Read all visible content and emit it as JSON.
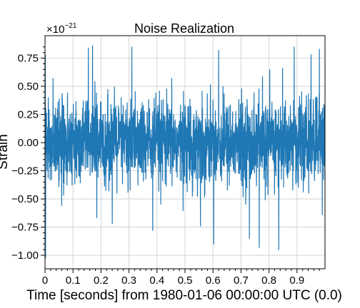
{
  "chart_data": {
    "type": "line",
    "title": "Noise Realization",
    "xlabel": "Time [seconds] from 1980-01-06 00:00:00 UTC (0.0)",
    "ylabel": "Strain",
    "y_exponent_label": "×10",
    "y_exponent_power": "−21",
    "xlim": [
      0,
      1.0
    ],
    "ylim": [
      -1.12,
      0.95
    ],
    "x_ticks": [
      0,
      0.1,
      0.2,
      0.3,
      0.4,
      0.5,
      0.6,
      0.7,
      0.8,
      0.9
    ],
    "x_tick_labels": [
      "0",
      "0.1",
      "0.2",
      "0.3",
      "0.4",
      "0.5",
      "0.6",
      "0.7",
      "0.8",
      "0.9"
    ],
    "y_ticks": [
      -1.0,
      -0.75,
      -0.5,
      -0.25,
      0.0,
      0.25,
      0.5,
      0.75
    ],
    "y_tick_labels": [
      "−1.00",
      "−0.75",
      "−0.50",
      "−0.25",
      "0.00",
      "0.25",
      "0.50",
      "0.75"
    ],
    "grid": true,
    "series": [
      {
        "color": "#1f77b4",
        "sample_rate": 2048,
        "duration": 1.0,
        "typical_envelope": [
          -0.4,
          0.4
        ],
        "extremes": [
          {
            "x": 0.002,
            "y": -1.02
          },
          {
            "x": 0.001,
            "y": 0.78
          },
          {
            "x": 0.155,
            "y": 0.84
          },
          {
            "x": 0.17,
            "y": 0.86
          },
          {
            "x": 0.24,
            "y": -0.72
          },
          {
            "x": 0.31,
            "y": 0.85
          },
          {
            "x": 0.385,
            "y": -0.78
          },
          {
            "x": 0.555,
            "y": -0.74
          },
          {
            "x": 0.62,
            "y": 0.82
          },
          {
            "x": 0.73,
            "y": -0.85
          },
          {
            "x": 0.765,
            "y": -0.93
          },
          {
            "x": 0.835,
            "y": -0.95
          },
          {
            "x": 0.89,
            "y": 0.85
          },
          {
            "x": 0.95,
            "y": 0.78
          },
          {
            "x": 0.98,
            "y": 0.83
          },
          {
            "x": 0.99,
            "y": -0.64
          }
        ]
      }
    ]
  }
}
